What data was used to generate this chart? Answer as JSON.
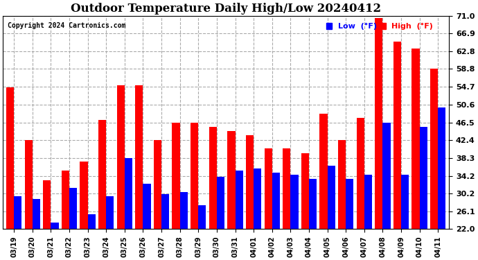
{
  "title": "Outdoor Temperature Daily High/Low 20240412",
  "copyright": "Copyright 2024 Cartronics.com",
  "dates": [
    "03/19",
    "03/20",
    "03/21",
    "03/22",
    "03/23",
    "03/24",
    "03/25",
    "03/26",
    "03/27",
    "03/28",
    "03/29",
    "03/30",
    "03/31",
    "04/01",
    "04/02",
    "04/03",
    "04/04",
    "04/05",
    "04/06",
    "04/07",
    "04/08",
    "04/09",
    "04/10",
    "04/11"
  ],
  "highs": [
    54.5,
    42.4,
    33.2,
    35.5,
    37.5,
    47.0,
    55.0,
    55.0,
    42.4,
    46.5,
    46.5,
    45.5,
    44.5,
    43.5,
    40.5,
    40.5,
    39.5,
    48.5,
    42.5,
    47.5,
    70.5,
    65.0,
    63.5,
    58.8
  ],
  "lows": [
    29.5,
    29.0,
    23.5,
    31.5,
    25.5,
    29.5,
    38.3,
    32.5,
    30.0,
    30.5,
    27.5,
    34.0,
    35.5,
    36.0,
    35.0,
    34.5,
    33.5,
    36.5,
    33.5,
    34.5,
    46.5,
    34.5,
    45.5,
    50.0
  ],
  "high_color": "#ff0000",
  "low_color": "#0000ff",
  "bg_color": "#ffffff",
  "grid_color": "#aaaaaa",
  "ymin": 22.0,
  "ymax": 71.0,
  "yticks": [
    22.0,
    26.1,
    30.2,
    34.2,
    38.3,
    42.4,
    46.5,
    50.6,
    54.7,
    58.8,
    62.8,
    66.9,
    71.0
  ],
  "title_fontsize": 12,
  "bar_width": 0.42
}
